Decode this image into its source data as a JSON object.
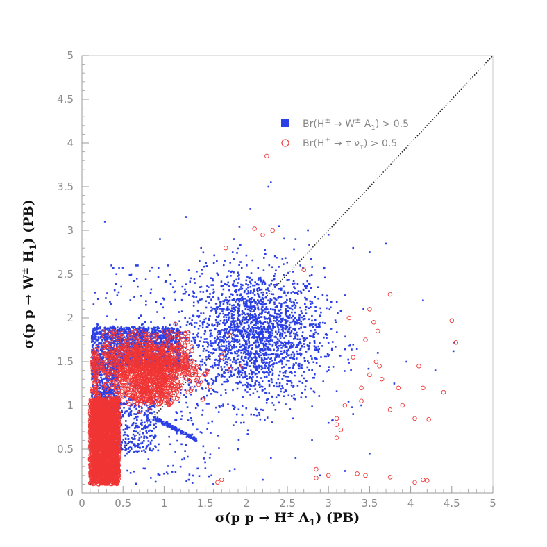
{
  "chart_data": {
    "type": "scatter",
    "xlabel_parts": {
      "pre": "σ(p p → H",
      "sup": "±",
      "mid": " A",
      "sub": "1",
      "post": ") (PB)"
    },
    "ylabel_parts": {
      "pre": "σ(p p → W",
      "sup": "±",
      "mid": " H",
      "sub": "1",
      "post": ") (PB)"
    },
    "xlim": [
      0,
      5
    ],
    "ylim": [
      0,
      5
    ],
    "x_ticks": [
      "0",
      "0.5",
      "1",
      "1.5",
      "2",
      "2.5",
      "3",
      "3.5",
      "4",
      "4.5",
      "5"
    ],
    "y_ticks": [
      "0",
      "0.5",
      "1",
      "1.5",
      "2",
      "2.5",
      "3",
      "3.5",
      "4",
      "4.5",
      "5"
    ],
    "grid": false,
    "legend_position": "top-right",
    "reference_line": {
      "style": "dotted",
      "from": [
        0.1,
        0.1
      ],
      "to": [
        5,
        5
      ]
    },
    "series": [
      {
        "name": "Br(H± → W± A1) > 0.5",
        "legend_parts": {
          "pre": "Br(H",
          "sup1": "±",
          "mid": " → W",
          "sup2": "±",
          "mid2": " A",
          "sub": "1",
          "post": ") > 0.5"
        },
        "marker": "filled-square",
        "color": "#2b3fe6",
        "clusters": [
          {
            "shape": "gaussian",
            "cx": 2.1,
            "cy": 1.8,
            "sx": 0.42,
            "sy": 0.38,
            "n": 2200
          },
          {
            "shape": "box",
            "x": [
              0.12,
              1.2
            ],
            "y": [
              1.45,
              1.9
            ],
            "n": 1400
          },
          {
            "shape": "box",
            "x": [
              0.12,
              0.45
            ],
            "y": [
              0.5,
              1.5
            ],
            "n": 900
          },
          {
            "shape": "box",
            "x": [
              0.35,
              0.9
            ],
            "y": [
              0.45,
              1.1
            ],
            "n": 350
          },
          {
            "shape": "band",
            "x": [
              0.9,
              1.4
            ],
            "y": [
              0.85,
              0.6
            ],
            "w": 0.04,
            "n": 140
          },
          {
            "shape": "box",
            "x": [
              0.12,
              1.6
            ],
            "y": [
              0.1,
              2.6
            ],
            "n": 320
          }
        ],
        "points": [
          [
            0.28,
            3.1
          ],
          [
            0.36,
            2.6
          ],
          [
            0.6,
            2.5
          ],
          [
            0.95,
            2.9
          ],
          [
            1.05,
            2.6
          ],
          [
            1.45,
            2.8
          ],
          [
            1.85,
            2.9
          ],
          [
            2.05,
            3.25
          ],
          [
            2.27,
            3.5
          ],
          [
            2.3,
            3.55
          ],
          [
            2.4,
            3.05
          ],
          [
            2.6,
            2.9
          ],
          [
            2.75,
            3.0
          ],
          [
            3.0,
            2.95
          ],
          [
            3.3,
            2.8
          ],
          [
            3.5,
            2.75
          ],
          [
            3.7,
            2.85
          ],
          [
            4.15,
            2.2
          ],
          [
            4.53,
            1.72
          ],
          [
            4.52,
            1.62
          ],
          [
            3.95,
            1.5
          ],
          [
            4.3,
            1.4
          ],
          [
            3.6,
            1.6
          ],
          [
            3.8,
            1.25
          ],
          [
            3.4,
            1.0
          ],
          [
            3.3,
            0.9
          ],
          [
            3.0,
            0.8
          ],
          [
            2.8,
            0.6
          ],
          [
            3.2,
            0.25
          ],
          [
            2.9,
            0.2
          ],
          [
            3.5,
            0.45
          ],
          [
            2.6,
            0.4
          ],
          [
            2.3,
            0.4
          ],
          [
            1.9,
            0.5
          ],
          [
            1.5,
            0.35
          ],
          [
            1.2,
            0.3
          ],
          [
            1.0,
            0.22
          ],
          [
            1.3,
            0.15
          ],
          [
            1.8,
            0.25
          ],
          [
            2.2,
            0.15
          ],
          [
            1.6,
            0.1
          ]
        ]
      },
      {
        "name": "Br(H± → τ ντ) > 0.5",
        "legend_parts": {
          "pre": "Br(H",
          "sup1": "±",
          "mid": " → τ ν",
          "sub": "τ",
          "post": ") > 0.5"
        },
        "marker": "open-circle",
        "color": "#f03535",
        "clusters": [
          {
            "shape": "box",
            "x": [
              0.1,
              0.45
            ],
            "y": [
              0.1,
              1.08
            ],
            "n": 1800
          },
          {
            "shape": "gaussian",
            "cx": 0.8,
            "cy": 1.4,
            "sx": 0.28,
            "sy": 0.16,
            "n": 900
          },
          {
            "shape": "box",
            "x": [
              0.25,
              1.3
            ],
            "y": [
              1.35,
              1.85
            ],
            "n": 250
          },
          {
            "shape": "box",
            "x": [
              0.6,
              1.1
            ],
            "y": [
              1.0,
              1.25
            ],
            "n": 120
          },
          {
            "shape": "box",
            "x": [
              0.12,
              0.2
            ],
            "y": [
              0.5,
              1.65
            ],
            "n": 120
          }
        ],
        "points": [
          [
            2.25,
            3.85
          ],
          [
            2.1,
            3.02
          ],
          [
            2.2,
            2.95
          ],
          [
            2.32,
            3.0
          ],
          [
            1.75,
            2.8
          ],
          [
            3.25,
            2.0
          ],
          [
            3.5,
            2.1
          ],
          [
            3.75,
            2.27
          ],
          [
            3.55,
            1.95
          ],
          [
            3.6,
            1.85
          ],
          [
            3.45,
            1.75
          ],
          [
            3.3,
            1.55
          ],
          [
            3.62,
            1.45
          ],
          [
            3.58,
            1.5
          ],
          [
            3.5,
            1.35
          ],
          [
            3.65,
            1.3
          ],
          [
            3.4,
            1.2
          ],
          [
            3.85,
            1.2
          ],
          [
            3.9,
            1.0
          ],
          [
            3.75,
            0.95
          ],
          [
            3.4,
            1.05
          ],
          [
            3.2,
            1.0
          ],
          [
            3.1,
            0.85
          ],
          [
            3.1,
            0.78
          ],
          [
            3.15,
            0.72
          ],
          [
            3.1,
            0.63
          ],
          [
            4.1,
            1.45
          ],
          [
            4.15,
            1.2
          ],
          [
            4.4,
            1.15
          ],
          [
            4.5,
            1.97
          ],
          [
            4.55,
            1.72
          ],
          [
            4.05,
            0.85
          ],
          [
            4.22,
            0.84
          ],
          [
            2.85,
            0.27
          ],
          [
            2.85,
            0.17
          ],
          [
            3.0,
            0.2
          ],
          [
            3.35,
            0.22
          ],
          [
            3.45,
            0.2
          ],
          [
            3.75,
            0.18
          ],
          [
            4.05,
            0.12
          ],
          [
            4.15,
            0.15
          ],
          [
            4.2,
            0.14
          ],
          [
            1.65,
            0.12
          ],
          [
            1.7,
            0.15
          ],
          [
            1.8,
            1.8
          ],
          [
            1.7,
            1.55
          ],
          [
            1.5,
            1.35
          ],
          [
            1.95,
            1.45
          ],
          [
            2.7,
            2.55
          ]
        ]
      }
    ]
  }
}
